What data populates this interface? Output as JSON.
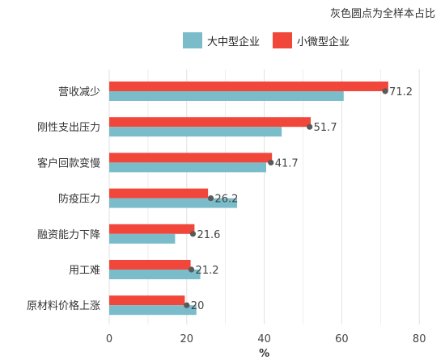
{
  "note": "灰色圆点为全样本占比",
  "colors": {
    "large": "#7bbcca",
    "small": "#f1473b",
    "dot": "#5a5a5a",
    "grid": "#e2e2e2",
    "text": "#333333"
  },
  "chart_data": {
    "type": "bar",
    "orientation": "horizontal",
    "categories": [
      "营收减少",
      "刚性支出压力",
      "客户回款变慢",
      "防疫压力",
      "融资能力下降",
      "用工难",
      "原材料价格上涨"
    ],
    "series": [
      {
        "name": "大中型企业",
        "values": [
          60.5,
          44.5,
          40.5,
          33,
          17,
          23.5,
          22.5
        ]
      },
      {
        "name": "小微型企业",
        "values": [
          72,
          52,
          42,
          25.5,
          22,
          21,
          19.5
        ]
      }
    ],
    "overall": {
      "values": [
        71.2,
        51.7,
        41.7,
        26.2,
        21.6,
        21.2,
        20
      ],
      "labels": [
        "71.2",
        "51.7",
        "41.7",
        "26.2",
        "21.6",
        "21.2",
        "20"
      ]
    },
    "xlabel": "%",
    "xlim": [
      0,
      80
    ],
    "xticks": [
      0,
      20,
      40,
      60,
      80
    ],
    "legend_position": "top",
    "grid": true
  }
}
